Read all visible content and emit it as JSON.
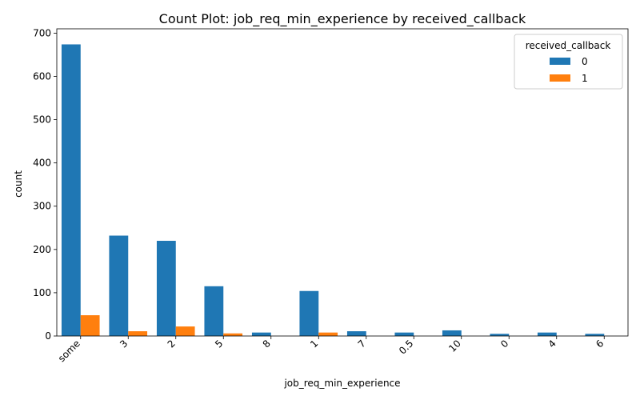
{
  "chart_data": {
    "type": "bar",
    "title": "Count Plot: job_req_min_experience by received_callback",
    "xlabel": "job_req_min_experience",
    "ylabel": "count",
    "categories": [
      "some",
      "3",
      "2",
      "5",
      "8",
      "1",
      "7",
      "0.5",
      "10",
      "0",
      "4",
      "6"
    ],
    "series": [
      {
        "name": "0",
        "color": "#1f77b4",
        "values": [
          674,
          232,
          220,
          115,
          8,
          104,
          11,
          8,
          13,
          5,
          8,
          5
        ]
      },
      {
        "name": "1",
        "color": "#ff7f0e",
        "values": [
          48,
          11,
          22,
          6,
          0,
          8,
          0,
          0,
          0,
          0,
          0,
          0
        ]
      }
    ],
    "ylim": [
      0,
      710
    ],
    "yticks": [
      0,
      100,
      200,
      300,
      400,
      500,
      600,
      700
    ],
    "legend": {
      "title": "received_callback",
      "placement": "top-right"
    },
    "grid": false,
    "xtick_rotation": 45
  }
}
